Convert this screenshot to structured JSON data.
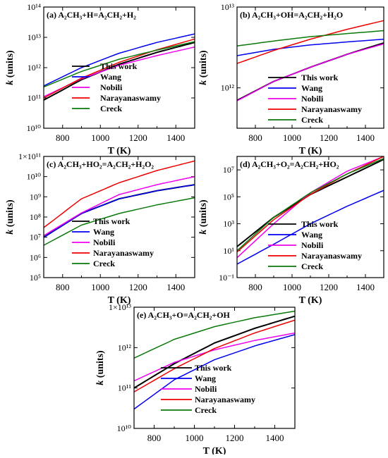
{
  "figure": {
    "xlabel": "T (K)",
    "ylabel_var": "k",
    "ylabel_rest": " (units)",
    "legend_entries": [
      "This work",
      "Wang",
      "Nobili",
      "Narayanaswamy",
      "Creck"
    ],
    "colors": {
      "This work": "#000000",
      "Wang": "#0000ee",
      "Nobili": "#ee00ee",
      "Narayanaswamy": "#ee0000",
      "Creck": "#0a7a0a"
    }
  },
  "chart_data": [
    {
      "type": "line",
      "panel": "a",
      "title": "(a) A₂CH₃+H=A₂CH₂+H₂",
      "xlabel": "T (K)",
      "ylabel": "k (units)",
      "xlim": [
        700,
        1500
      ],
      "ylim_exp": [
        10,
        14
      ],
      "log_y": true,
      "xticks": [
        800,
        1000,
        1200,
        1400
      ],
      "yticks": [
        "10¹⁰",
        "10¹¹",
        "10¹²",
        "10¹³",
        "10¹⁴"
      ],
      "legend_position": "bottom-right",
      "legend_series": [
        "This work",
        "Wang",
        "Nobili",
        "Narayanaswamy",
        "Creck"
      ],
      "x": [
        700,
        900,
        1100,
        1300,
        1500
      ],
      "series": [
        {
          "name": "This work",
          "values": [
            85000000000.0,
            400000000000.0,
            1300000000000.0,
            3200000000000.0,
            6800000000000.0
          ]
        },
        {
          "name": "Wang",
          "values": [
            250000000000.0,
            1000000000000.0,
            3000000000000.0,
            6800000000000.0,
            13000000000000.0
          ]
        },
        {
          "name": "Nobili",
          "values": [
            110000000000.0,
            430000000000.0,
            1200000000000.0,
            2500000000000.0,
            4800000000000.0
          ]
        },
        {
          "name": "Narayanaswamy",
          "values": [
            100000000000.0,
            450000000000.0,
            1500000000000.0,
            3900000000000.0,
            8800000000000.0
          ]
        },
        {
          "name": "Creck",
          "values": [
            230000000000.0,
            750000000000.0,
            1900000000000.0,
            3800000000000.0,
            7200000000000.0
          ]
        }
      ]
    },
    {
      "type": "line",
      "panel": "b",
      "title": "(b) A₂CH₃+OH=A₂CH₂+H₂O",
      "xlabel": "T (K)",
      "ylabel": "k (units)",
      "xlim": [
        700,
        1500
      ],
      "ylim_exp": [
        11.5,
        13
      ],
      "log_y": true,
      "xticks": [
        800,
        1000,
        1200,
        1400
      ],
      "yticks": [
        "10¹²",
        "10¹³"
      ],
      "legend_position": "bottom-right",
      "legend_series": [
        "This work",
        "Wang",
        "Nobili",
        "Narayanaswamy",
        "Creck"
      ],
      "x": [
        700,
        900,
        1100,
        1300,
        1500
      ],
      "series": [
        {
          "name": "This work",
          "values": [
            700000000000.0,
            1200000000000.0,
            1800000000000.0,
            2600000000000.0,
            3600000000000.0
          ]
        },
        {
          "name": "Wang",
          "values": [
            2500000000000.0,
            3000000000000.0,
            3400000000000.0,
            3700000000000.0,
            4000000000000.0
          ]
        },
        {
          "name": "Nobili",
          "values": [
            690000000000.0,
            1200000000000.0,
            1800000000000.0,
            2600000000000.0,
            3500000000000.0
          ]
        },
        {
          "name": "Narayanaswamy",
          "values": [
            2000000000000.0,
            2900000000000.0,
            4000000000000.0,
            5300000000000.0,
            6800000000000.0
          ]
        },
        {
          "name": "Creck",
          "values": [
            3300000000000.0,
            3800000000000.0,
            4300000000000.0,
            4700000000000.0,
            5100000000000.0
          ]
        }
      ]
    },
    {
      "type": "line",
      "panel": "c",
      "title": "(c) A₂CH₃+HO₂=A₂CH₂+H₂O₂",
      "xlabel": "T (K)",
      "ylabel": "k (units)",
      "xlim": [
        700,
        1500
      ],
      "ylim_exp": [
        5,
        11
      ],
      "log_y": true,
      "xticks": [
        800,
        1000,
        1200,
        1400
      ],
      "yticks": [
        "10⁵",
        "10⁶",
        "10⁷",
        "10⁸",
        "10⁹",
        "10¹⁰",
        "1×10¹¹"
      ],
      "legend_position": "bottom-right",
      "legend_series": [
        "This work",
        "Wang",
        "Nobili",
        "Narayanaswamy",
        "Creck"
      ],
      "x": [
        700,
        900,
        1100,
        1300,
        1500
      ],
      "series": [
        {
          "name": "This work",
          "values": [
            10000000.0,
            150000000.0,
            800000000.0,
            2000000000.0,
            4000000000.0
          ]
        },
        {
          "name": "Wang",
          "values": [
            10000000.0,
            150000000.0,
            800000000.0,
            2000000000.0,
            4000000000.0
          ]
        },
        {
          "name": "Nobili",
          "values": [
            12000000.0,
            160000000.0,
            1300000000.0,
            4000000000.0,
            10000000000.0
          ]
        },
        {
          "name": "Narayanaswamy",
          "values": [
            30000000.0,
            800000000.0,
            5000000000.0,
            20000000000.0,
            60000000000.0
          ]
        },
        {
          "name": "Creck",
          "values": [
            4000000.0,
            40000000.0,
            150000000.0,
            400000000.0,
            900000000.0
          ]
        }
      ]
    },
    {
      "type": "line",
      "panel": "d",
      "title": "(d) A₂CH₃+O₂=A₂CH₂+HO₂",
      "xlabel": "T (K)",
      "ylabel": "k (units)",
      "xlim": [
        700,
        1500
      ],
      "ylim_exp": [
        -1,
        8
      ],
      "log_y": true,
      "xticks": [
        800,
        1000,
        1200,
        1400
      ],
      "yticks": [
        "10⁻¹",
        "10¹",
        "10³",
        "10⁵",
        "10⁷"
      ],
      "legend_position": "bottom-right",
      "legend_series": [
        "This work",
        "Wang",
        "Nobili",
        "Narayanaswamy",
        "Creck"
      ],
      "x": [
        700,
        900,
        1100,
        1300,
        1500
      ],
      "series": [
        {
          "name": "This work",
          "values": [
            20,
            3000,
            150000,
            3000000,
            60000000
          ]
        },
        {
          "name": "Wang",
          "values": [
            1,
            30,
            1000,
            20000,
            300000
          ]
        },
        {
          "name": "Nobili",
          "values": [
            3,
            1000,
            200000,
            8000000,
            100000000
          ]
        },
        {
          "name": "Narayanaswamy",
          "values": [
            8,
            2000,
            150000,
            5000000,
            100000000
          ]
        },
        {
          "name": "Creck",
          "values": [
            10,
            3000,
            200000,
            5000000,
            70000000
          ]
        }
      ]
    },
    {
      "type": "line",
      "panel": "e",
      "title": "(e) A₂CH₃+O=A₂CH₂+OH",
      "xlabel": "T (K)",
      "ylabel": "k (units)",
      "xlim": [
        700,
        1500
      ],
      "ylim_exp": [
        10,
        13
      ],
      "log_y": true,
      "xticks": [
        800,
        1000,
        1200,
        1400
      ],
      "yticks": [
        "10¹⁰",
        "10¹¹",
        "10¹²",
        "1×10¹³"
      ],
      "legend_position": "bottom-right",
      "legend_series": [
        "This work",
        "Wang",
        "Nobili",
        "Narayanaswamy",
        "Creck"
      ],
      "x": [
        700,
        900,
        1100,
        1300,
        1500
      ],
      "series": [
        {
          "name": "This work",
          "values": [
            100000000000.0,
            400000000000.0,
            1300000000000.0,
            3000000000000.0,
            6000000000000.0
          ]
        },
        {
          "name": "Wang",
          "values": [
            30000000000.0,
            160000000000.0,
            500000000000.0,
            1100000000000.0,
            2100000000000.0
          ]
        },
        {
          "name": "Nobili",
          "values": [
            150000000000.0,
            430000000000.0,
            880000000000.0,
            1500000000000.0,
            2300000000000.0
          ]
        },
        {
          "name": "Narayanaswamy",
          "values": [
            80000000000.0,
            300000000000.0,
            950000000000.0,
            2300000000000.0,
            4800000000000.0
          ]
        },
        {
          "name": "Creck",
          "values": [
            550000000000.0,
            1600000000000.0,
            3300000000000.0,
            5500000000000.0,
            8000000000000.0
          ]
        }
      ]
    }
  ]
}
